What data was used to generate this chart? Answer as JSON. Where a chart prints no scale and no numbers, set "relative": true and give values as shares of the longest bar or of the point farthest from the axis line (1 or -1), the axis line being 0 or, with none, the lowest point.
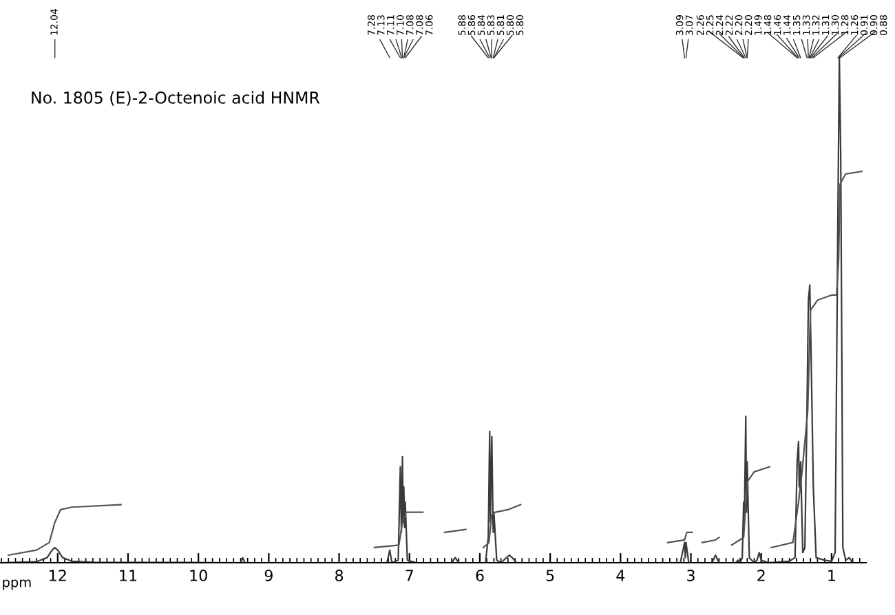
{
  "chart_data": {
    "type": "line",
    "title": "No. 1805 (E)-2-Octenoic acid HNMR",
    "xlabel": "ppm",
    "relative": true,
    "xlim": [
      12.82,
      0.51
    ],
    "xticks": [
      12,
      11,
      10,
      9,
      8,
      7,
      6,
      5,
      4,
      3,
      2,
      1
    ],
    "grid": false,
    "legend": false,
    "tick_labels": "x",
    "series": [
      {
        "color": "#3a3a3a",
        "x": [
          12.8,
          12.3,
          12.15,
          12.08,
          12.04,
          12.0,
          11.93,
          11.8,
          11.5,
          9.4,
          9.37,
          9.34,
          7.32,
          7.28,
          7.25,
          7.16,
          7.13,
          7.115,
          7.1,
          7.09,
          7.08,
          7.07,
          7.06,
          7.03,
          6.9,
          6.4,
          6.35,
          6.3,
          5.92,
          5.88,
          5.86,
          5.85,
          5.83,
          5.81,
          5.8,
          5.76,
          5.7,
          5.62,
          5.58,
          5.54,
          5.48,
          3.15,
          3.09,
          3.08,
          3.07,
          3.03,
          2.7,
          2.65,
          2.6,
          2.36,
          2.33,
          2.3,
          2.27,
          2.25,
          2.24,
          2.22,
          2.21,
          2.2,
          2.17,
          2.1,
          2.06,
          2.03,
          2.0,
          1.9,
          1.6,
          1.52,
          1.49,
          1.47,
          1.46,
          1.44,
          1.41,
          1.38,
          1.35,
          1.33,
          1.31,
          1.29,
          1.26,
          1.22,
          1.1,
          1.0,
          0.95,
          0.91,
          0.89,
          0.87,
          0.84,
          0.8,
          0.75,
          0.7,
          0.51
        ],
        "values": [
          0,
          0.002,
          0.01,
          0.025,
          0.03,
          0.025,
          0.01,
          0.003,
          0.001,
          0,
          0.01,
          0,
          0,
          0.025,
          0,
          0.005,
          0.19,
          0.06,
          0.21,
          0.08,
          0.15,
          0.07,
          0.12,
          0.005,
          0,
          0,
          0.01,
          0,
          0,
          0.05,
          0.26,
          0.08,
          0.25,
          0.06,
          0.1,
          0.005,
          0,
          0.01,
          0.015,
          0.01,
          0,
          0,
          0.04,
          0.01,
          0.04,
          0,
          0,
          0.015,
          0,
          0,
          0.005,
          0,
          0.01,
          0.12,
          0.08,
          0.29,
          0.1,
          0.2,
          0.01,
          0,
          0.005,
          0.02,
          0.005,
          0,
          0.003,
          0.01,
          0.2,
          0.24,
          0.15,
          0.2,
          0.02,
          0.03,
          0.3,
          0.52,
          0.55,
          0.4,
          0.15,
          0.01,
          0.005,
          0.003,
          0.02,
          0.7,
          1.0,
          0.8,
          0.03,
          0.005,
          0.01,
          0,
          0
        ]
      },
      {
        "color": "#555555",
        "x": [
          12.7,
          12.3,
          12.12,
          12.04,
          11.96,
          11.8,
          11.1,
          11.0,
          7.5,
          7.15,
          7.1,
          7.05,
          6.81,
          6.7,
          6.5,
          6.2,
          6.1,
          5.95,
          5.87,
          5.83,
          5.78,
          5.6,
          5.42,
          5.3,
          3.33,
          3.09,
          3.06,
          2.98,
          2.9,
          2.84,
          2.65,
          2.6,
          2.55,
          2.42,
          2.25,
          2.2,
          2.1,
          1.88,
          1.87,
          1.86,
          1.55,
          1.47,
          1.42,
          1.34,
          1.3,
          1.2,
          1.0,
          0.93,
          0.9,
          0.88,
          0.8,
          0.57
        ],
        "values": [
          0.015,
          0.025,
          0.04,
          0.08,
          0.105,
          0.11,
          0.115,
          null,
          0.03,
          0.035,
          0.08,
          0.1,
          0.1,
          null,
          0.06,
          0.066,
          null,
          0.03,
          0.04,
          0.095,
          0.1,
          0.105,
          0.115,
          null,
          0.04,
          0.045,
          0.06,
          0.06,
          null,
          0.04,
          0.045,
          0.05,
          null,
          0.035,
          0.05,
          0.16,
          0.18,
          0.19,
          null,
          0.03,
          0.04,
          0.12,
          0.18,
          0.3,
          0.5,
          0.52,
          0.53,
          0.53,
          0.6,
          0.75,
          0.77,
          0.775
        ]
      }
    ],
    "annotations": [
      "12.04",
      "7.28",
      "7.13",
      "7.11",
      "7.10",
      "7.08",
      "7.08",
      "7.06",
      "5.88",
      "5.86",
      "5.84",
      "5.83",
      "5.81",
      "5.80",
      "5.80",
      "3.09",
      "3.07",
      "2.26",
      "2.25",
      "2.24",
      "2.22",
      "2.20",
      "2.20",
      "1.49",
      "1.48",
      "1.46",
      "1.44",
      "1.35",
      "1.33",
      "1.32",
      "1.31",
      "1.30",
      "1.28",
      "1.26",
      "0.91",
      "0.90",
      "0.88"
    ]
  }
}
